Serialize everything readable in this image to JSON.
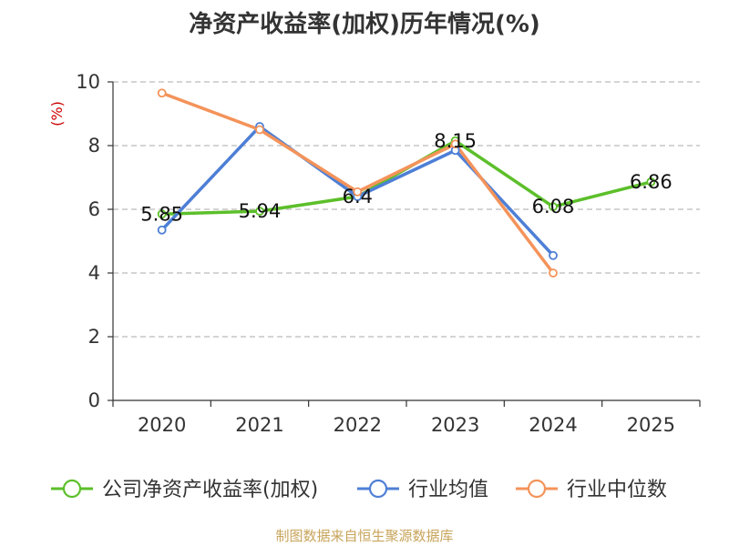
{
  "chart_data": {
    "type": "line",
    "title": "净资产收益率(加权)历年情况(%)",
    "ylabel": "(%)",
    "xlabel": "",
    "categories": [
      "2020",
      "2021",
      "2022",
      "2023",
      "2024",
      "2025"
    ],
    "ylim": [
      0,
      10
    ],
    "yticks": [
      "0",
      "2",
      "4",
      "6",
      "8",
      "10"
    ],
    "grid": true,
    "legend_position": "bottom",
    "series": [
      {
        "name": "公司净资产收益率(加权)",
        "color": "#5cbf2a",
        "values": [
          5.85,
          5.94,
          6.4,
          8.15,
          6.08,
          6.86
        ],
        "labels": [
          "5.85",
          "5.94",
          "6.4",
          "8.15",
          "6.08",
          "6.86"
        ]
      },
      {
        "name": "行业均值",
        "color": "#4e7fd6",
        "values": [
          5.35,
          8.6,
          6.4,
          7.85,
          4.55,
          null
        ]
      },
      {
        "name": "行业中位数",
        "color": "#f4935a",
        "values": [
          9.65,
          8.5,
          6.55,
          8.05,
          4.0,
          null
        ]
      }
    ]
  },
  "source": "制图数据来自恒生聚源数据库"
}
